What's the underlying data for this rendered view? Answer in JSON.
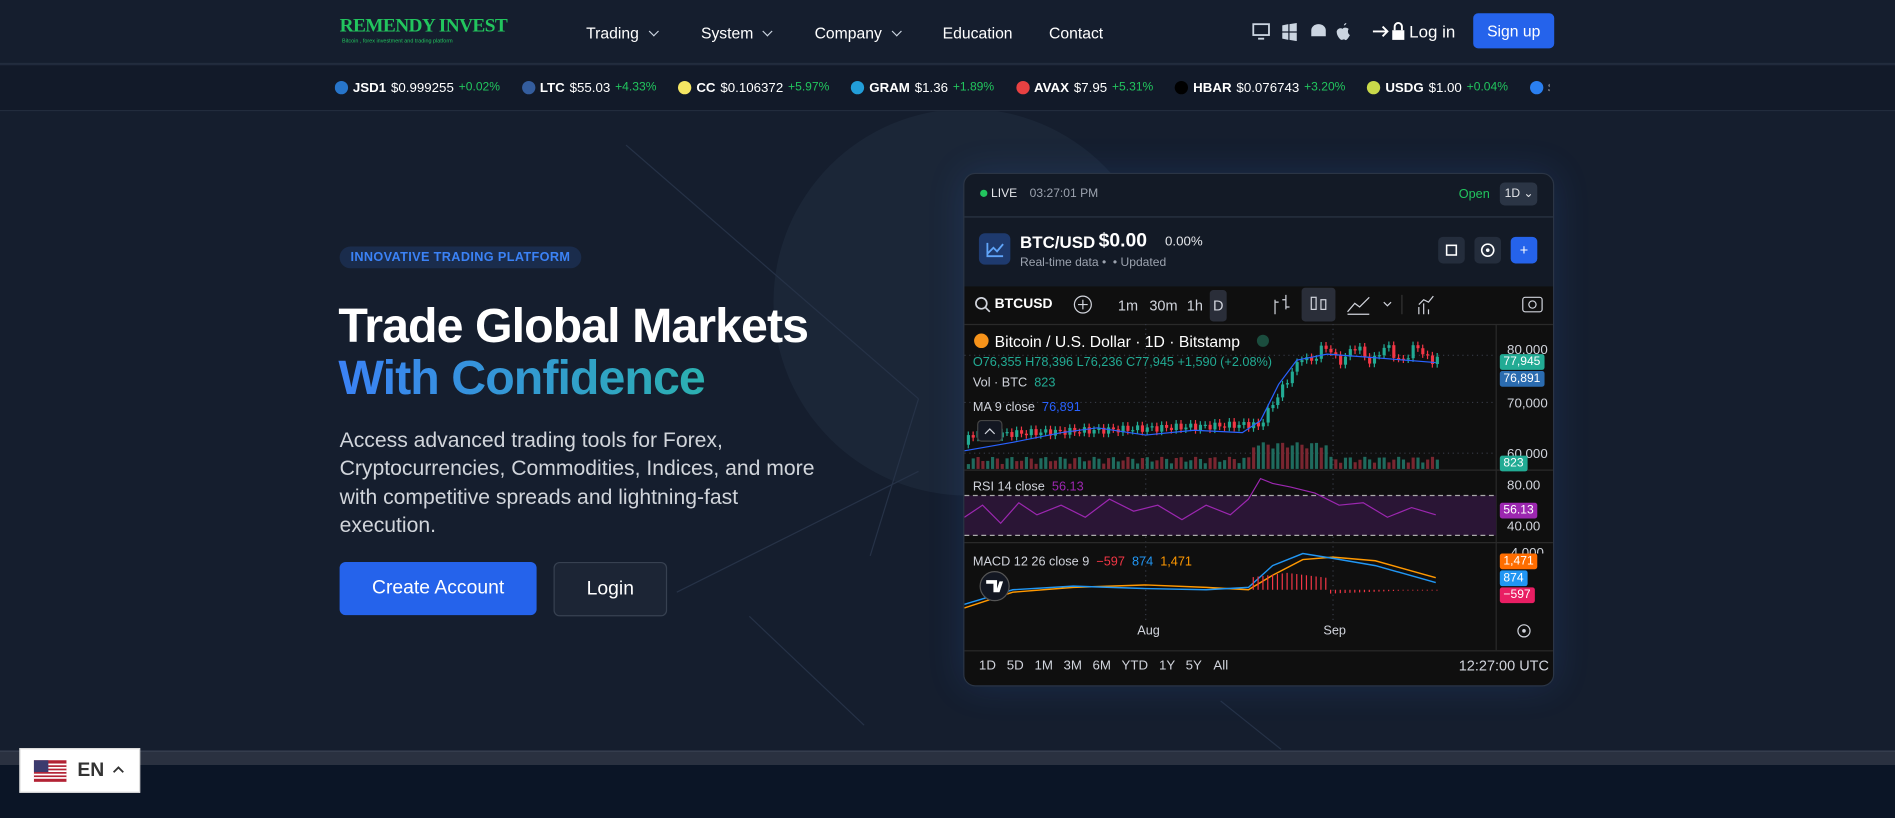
{
  "header": {
    "logo": "REMENDY INVEST",
    "logo_tagline": "Bitcoin , forex investment and trading platform",
    "nav": [
      "Trading",
      "System",
      "Company",
      "Education",
      "Contact"
    ],
    "login": "Log in",
    "signup": "Sign up"
  },
  "ticker": [
    {
      "symbol": "JSD1",
      "price": "$0.999255",
      "change": "+0.02%"
    },
    {
      "symbol": "LTC",
      "price": "$55.03",
      "change": "+4.33%"
    },
    {
      "symbol": "CC",
      "price": "$0.106372",
      "change": "+5.97%"
    },
    {
      "symbol": "GRAM",
      "price": "$1.36",
      "change": "+1.89%"
    },
    {
      "symbol": "AVAX",
      "price": "$7.95",
      "change": "+5.31%"
    },
    {
      "symbol": "HBAR",
      "price": "$0.076743",
      "change": "+3.20%"
    },
    {
      "symbol": "USDG",
      "price": "$1.00",
      "change": "+0.04%"
    },
    {
      "symbol": "S",
      "price": "",
      "change": ""
    }
  ],
  "hero": {
    "badge": "INNOVATIVE TRADING PLATFORM",
    "title_line1": "Trade Global Markets",
    "title_line2": "With Confidence",
    "description": "Access advanced trading tools for Forex, Cryptocurrencies, Commodities, Indices, and more with competitive spreads and lightning-fast execution.",
    "primary_button": "Create Account",
    "secondary_button": "Login"
  },
  "widget": {
    "status": "LIVE",
    "time": "03:27:01 PM",
    "market_state": "Open",
    "interval": "1D",
    "pair": "BTC/USD",
    "price": "$0.00",
    "change": "0.00%",
    "subtitle": "Real-time data",
    "updated": "Updated",
    "symbol": "BTCUSD",
    "intervals": [
      "1m",
      "30m",
      "1h",
      "D"
    ],
    "legend_title": "Bitcoin / U.S. Dollar · 1D · Bitstamp",
    "ohlc": "O76,355 H78,396 L76,236 C77,945 +1,590 (+2.08%)",
    "vol": "Vol · BTC",
    "vol_value": "823",
    "ma": "MA 9 close",
    "ma_value": "76,891",
    "rsi": "RSI 14 close",
    "rsi_value": "56.13",
    "macd": "MACD 12 26 close 9",
    "macd_values": [
      "−597",
      "874",
      "1,471"
    ],
    "price_axis": [
      "80,000",
      "70,000",
      "60,000"
    ],
    "price_tags": [
      "77,945",
      "76,891",
      "823"
    ],
    "rsi_axis": [
      "80.00",
      "40.00"
    ],
    "rsi_tag": "56.13",
    "macd_axis": "4,000",
    "macd_tags": [
      "1,471",
      "874",
      "−597"
    ],
    "time_axis": [
      "Aug",
      "Sep"
    ],
    "ranges": [
      "1D",
      "5D",
      "1M",
      "3M",
      "6M",
      "YTD",
      "1Y",
      "5Y",
      "All"
    ],
    "clock": "12:27:00 UTC"
  },
  "language": "EN"
}
